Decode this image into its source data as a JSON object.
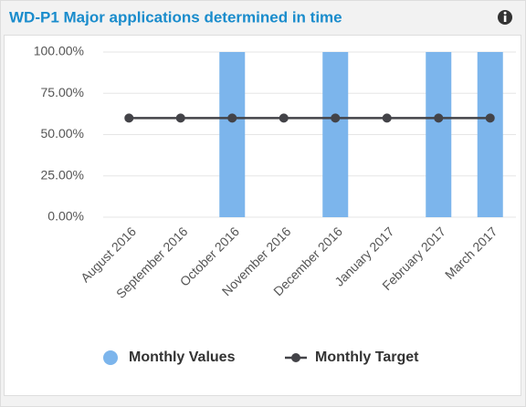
{
  "chart_data": {
    "type": "bar",
    "title": "WD-P1 Major applications determined in time",
    "categories": [
      "August 2016",
      "September 2016",
      "October 2016",
      "November 2016",
      "December 2016",
      "January 2017",
      "February 2017",
      "March 2017"
    ],
    "series": [
      {
        "name": "Monthly Values",
        "type": "bar",
        "color": "#7cb5ec",
        "values": [
          0,
          0,
          100,
          0,
          100,
          0,
          100,
          100
        ]
      },
      {
        "name": "Monthly Target",
        "type": "line",
        "color": "#434348",
        "values": [
          60,
          60,
          60,
          60,
          60,
          60,
          60,
          60
        ]
      }
    ],
    "ylim": [
      0,
      100
    ],
    "yticks": [
      {
        "value": 0,
        "label": "0.00%"
      },
      {
        "value": 25,
        "label": "25.00%"
      },
      {
        "value": 50,
        "label": "50.00%"
      },
      {
        "value": 75,
        "label": "75.00%"
      },
      {
        "value": 100,
        "label": "100.00%"
      }
    ],
    "grid": true,
    "legend": "bottom"
  }
}
